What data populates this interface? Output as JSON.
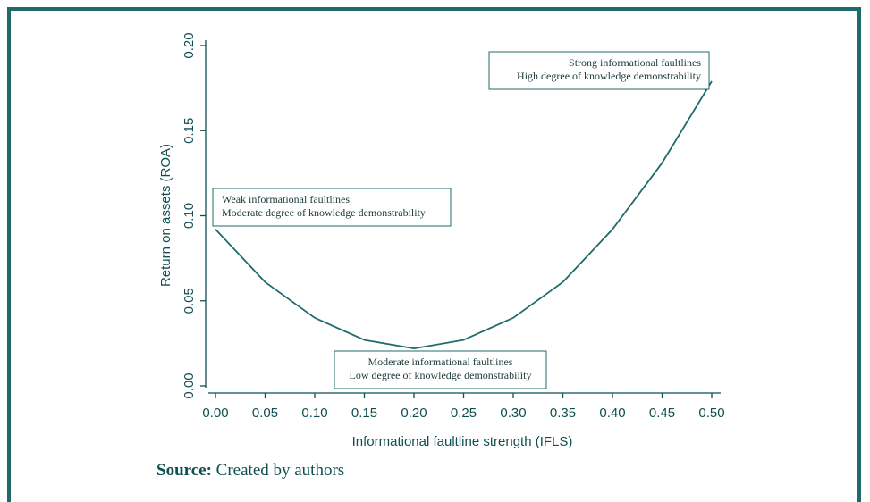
{
  "chart_data": {
    "type": "line",
    "xlabel": "Informational faultline strength (IFLS)",
    "ylabel": "Return on assets (ROA)",
    "xlim": [
      0,
      0.5
    ],
    "ylim": [
      0,
      0.2
    ],
    "x_ticks": [
      "0.00",
      "0.05",
      "0.10",
      "0.15",
      "0.20",
      "0.25",
      "0.30",
      "0.35",
      "0.40",
      "0.45",
      "0.50"
    ],
    "y_ticks": [
      "0.00",
      "0.05",
      "0.10",
      "0.15",
      "0.20"
    ],
    "grid": false,
    "series": [
      {
        "x": [
          0,
          0.05,
          0.1,
          0.15,
          0.2,
          0.25,
          0.3,
          0.35,
          0.4,
          0.45,
          0.5
        ],
        "y": [
          0.092,
          0.061,
          0.04,
          0.027,
          0.022,
          0.027,
          0.04,
          0.061,
          0.092,
          0.131,
          0.179
        ]
      }
    ],
    "annotations": [
      {
        "lines": [
          "Weak informational faultlines",
          "Moderate degree of knowledge demonstrability"
        ],
        "align": "left"
      },
      {
        "lines": [
          "Moderate informational faultlines",
          "Low degree of knowledge demonstrability"
        ],
        "align": "center"
      },
      {
        "lines": [
          "Strong informational faultlines",
          "High degree of knowledge demonstrability"
        ],
        "align": "right"
      }
    ]
  },
  "source": {
    "label": "Source:",
    "text": "Created by authors"
  },
  "colors": {
    "line": "#1f6b6b",
    "axis": "#0f4f4f",
    "frame": "#1f6b6b"
  }
}
